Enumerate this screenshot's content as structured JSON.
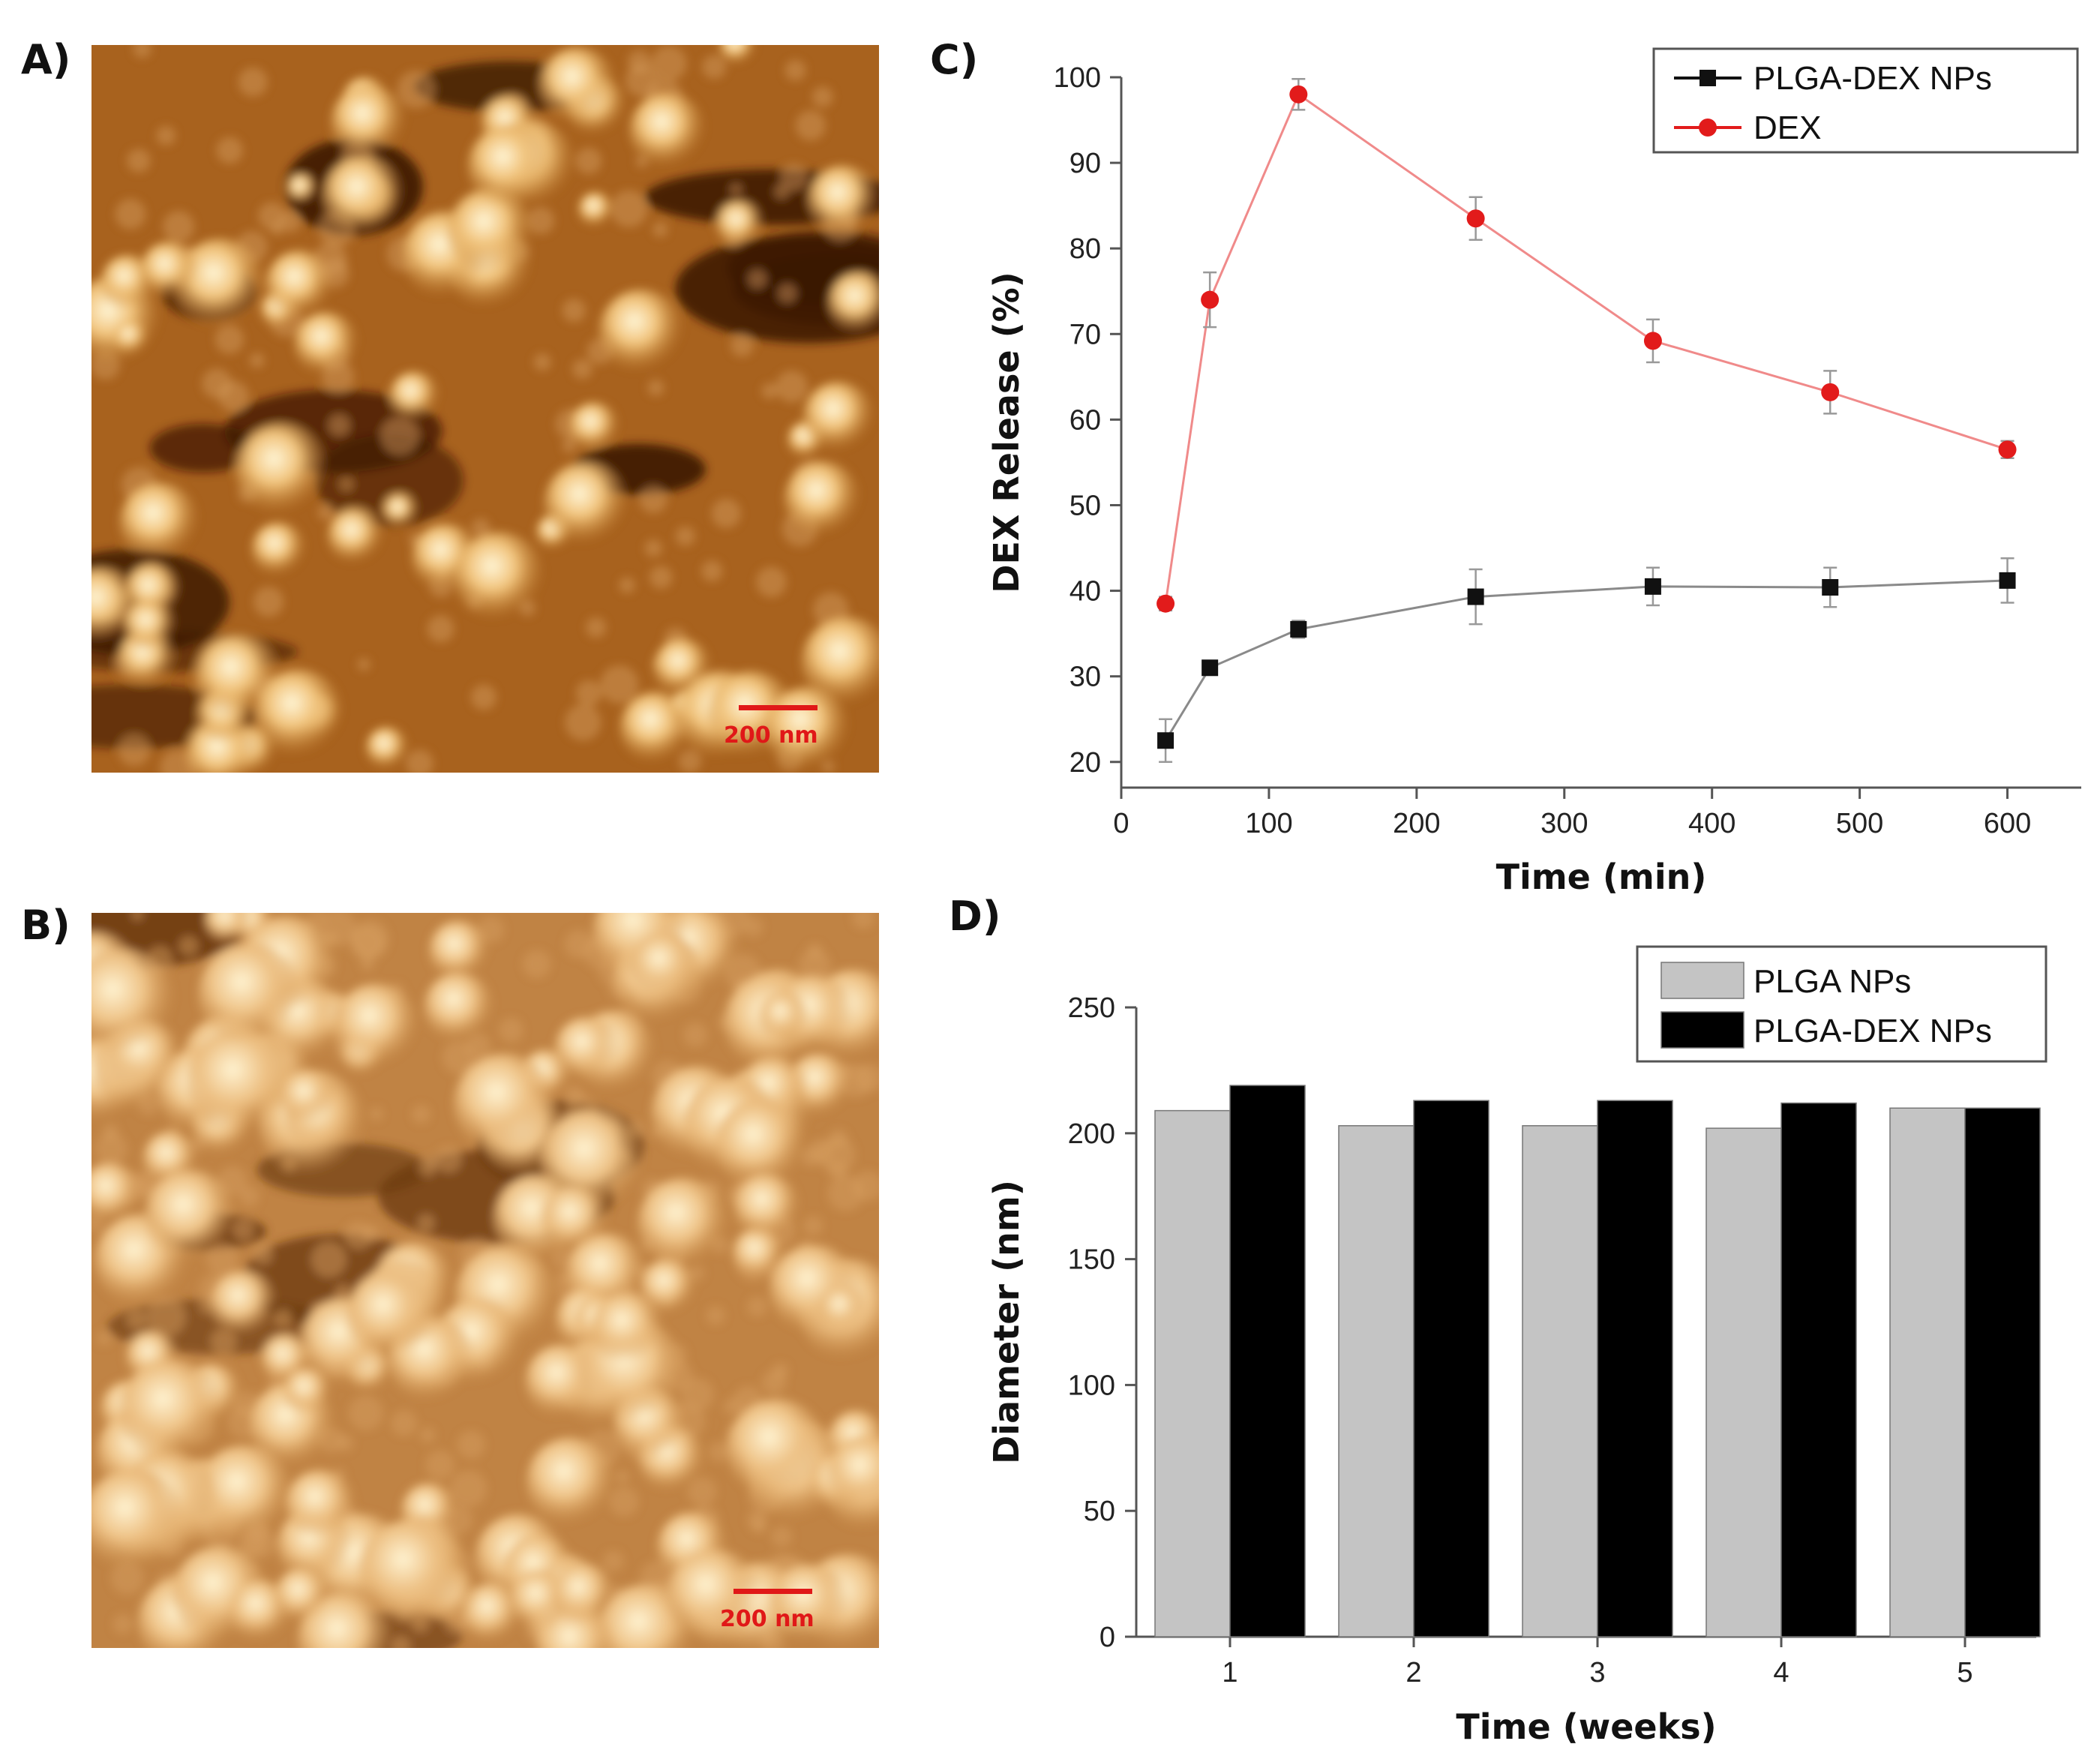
{
  "panels": [
    {
      "label": "A)"
    },
    {
      "label": "B)"
    },
    {
      "label": "C)"
    },
    {
      "label": "D)"
    }
  ],
  "afm_images": [
    {
      "panel": "A)",
      "scale_bar": "200 nm",
      "scale_color": "#e01818"
    },
    {
      "panel": "B)",
      "scale_bar": "200 nm",
      "scale_color": "#e01818"
    }
  ],
  "chart_data": [
    {
      "panel": "C)",
      "type": "line",
      "xlabel": "Time (min)",
      "ylabel": "DEX Release (%)",
      "xlim": [
        0,
        650
      ],
      "ylim": [
        17,
        100
      ],
      "xticks": [
        0,
        100,
        200,
        300,
        400,
        500,
        600
      ],
      "yticks": [
        20,
        30,
        40,
        50,
        60,
        70,
        80,
        90,
        100
      ],
      "legend_position": "top-right",
      "series": [
        {
          "name": "PLGA-DEX NPs",
          "color": "#111111",
          "line_color": "#8a8a8a",
          "marker": "square",
          "x": [
            30,
            60,
            120,
            240,
            360,
            480,
            600
          ],
          "y": [
            22.5,
            31,
            35.5,
            39.3,
            40.5,
            40.4,
            41.2
          ],
          "err": [
            2.5,
            0.8,
            1.0,
            3.2,
            2.2,
            2.3,
            2.6
          ]
        },
        {
          "name": "DEX",
          "color": "#e21b1b",
          "line_color": "#f08a8a",
          "marker": "diamond",
          "x": [
            30,
            60,
            120,
            240,
            360,
            480,
            600
          ],
          "y": [
            38.5,
            74,
            98,
            83.5,
            69.2,
            63.2,
            56.5
          ],
          "err": [
            0.8,
            3.2,
            1.8,
            2.5,
            2.5,
            2.5,
            1.0
          ]
        }
      ]
    },
    {
      "panel": "D)",
      "type": "bar",
      "xlabel": "Time (weeks)",
      "ylabel": "Diameter (nm)",
      "ylim": [
        0,
        250
      ],
      "yticks": [
        0,
        50,
        100,
        150,
        200,
        250
      ],
      "categories": [
        "1",
        "2",
        "3",
        "4",
        "5"
      ],
      "legend_position": "top-right",
      "series": [
        {
          "name": "PLGA NPs",
          "color": "#c4c4c4",
          "values": [
            209,
            203,
            203,
            202,
            210
          ]
        },
        {
          "name": "PLGA-DEX NPs",
          "color": "#000000",
          "values": [
            219,
            213,
            213,
            212,
            210
          ]
        }
      ]
    }
  ]
}
